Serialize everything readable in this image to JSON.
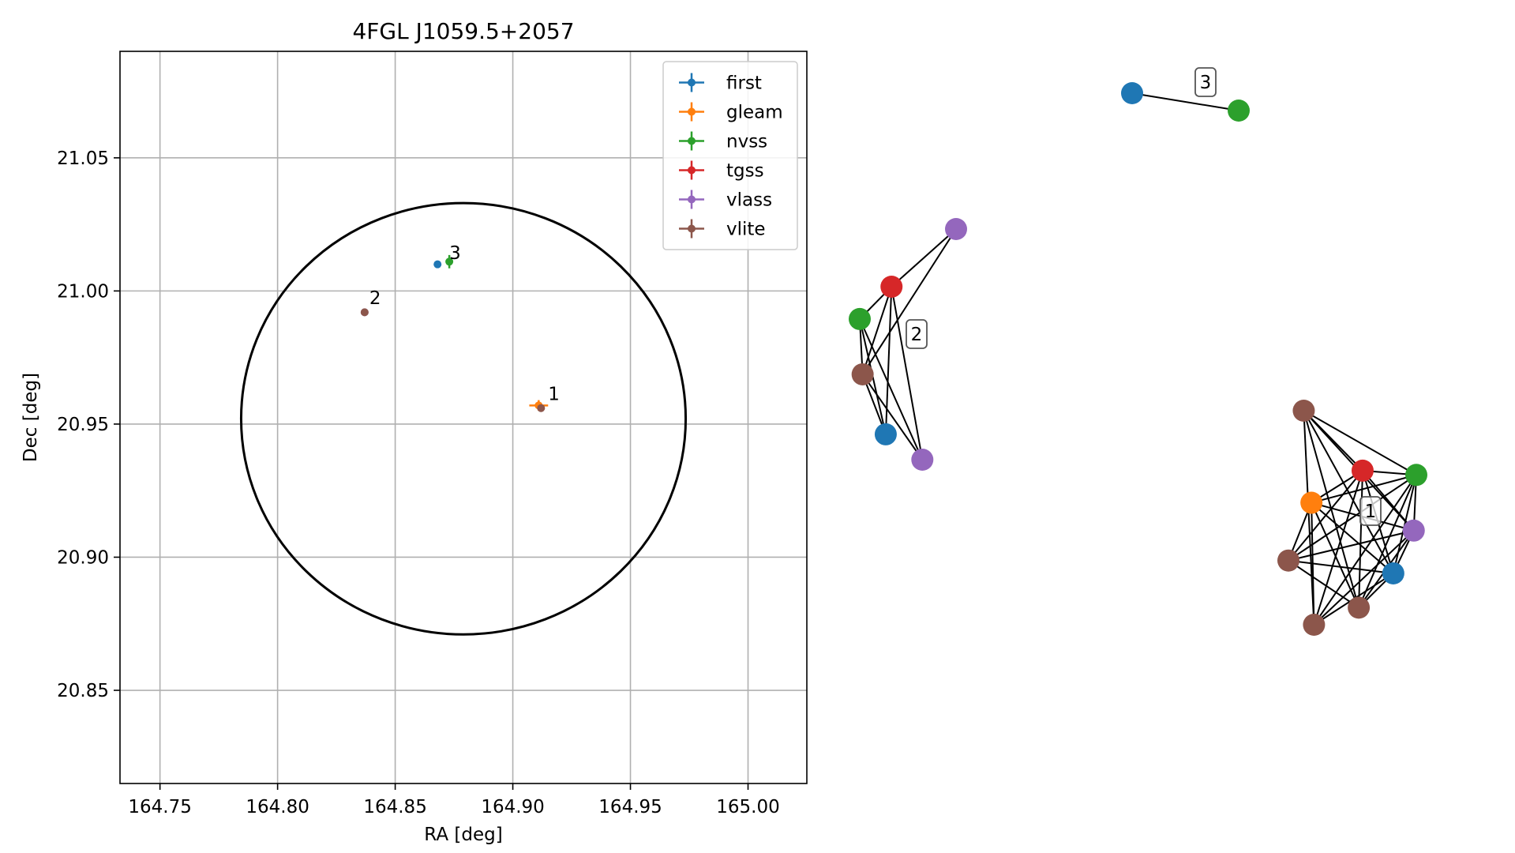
{
  "colors": {
    "first": "#1f77b4",
    "gleam": "#ff7f0e",
    "nvss": "#2ca02c",
    "tgss": "#d62728",
    "vlass": "#9467bd",
    "vlite": "#8c564b"
  },
  "chart_data": [
    {
      "type": "scatter",
      "title": "4FGL J1059.5+2057",
      "xlabel": "RA [deg]",
      "ylabel": "Dec [deg]",
      "xlim": [
        164.733,
        165.025
      ],
      "ylim": [
        20.815,
        21.09
      ],
      "grid": true,
      "legend_position": "top-right",
      "x_ticks": [
        {
          "value": 164.75,
          "label": "164.75"
        },
        {
          "value": 164.8,
          "label": "164.80"
        },
        {
          "value": 164.85,
          "label": "164.85"
        },
        {
          "value": 164.9,
          "label": "164.90"
        },
        {
          "value": 164.95,
          "label": "164.95"
        },
        {
          "value": 165.0,
          "label": "165.00"
        }
      ],
      "y_ticks": [
        {
          "value": 20.85,
          "label": "20.85"
        },
        {
          "value": 20.9,
          "label": "20.90"
        },
        {
          "value": 20.95,
          "label": "20.95"
        },
        {
          "value": 21.0,
          "label": "21.00"
        },
        {
          "value": 21.05,
          "label": "21.05"
        }
      ],
      "series": [
        {
          "name": "first",
          "color_key": "first",
          "points": [
            {
              "x": 164.868,
              "y": 21.01,
              "xerr": 0.0005,
              "yerr": 0.0005
            }
          ]
        },
        {
          "name": "gleam",
          "color_key": "gleam",
          "points": [
            {
              "x": 164.911,
              "y": 20.957,
              "xerr": 0.004,
              "yerr": 0.002
            }
          ]
        },
        {
          "name": "nvss",
          "color_key": "nvss",
          "points": [
            {
              "x": 164.873,
              "y": 21.011,
              "xerr": 0.0008,
              "yerr": 0.0025
            }
          ]
        },
        {
          "name": "tgss",
          "color_key": "tgss",
          "points": []
        },
        {
          "name": "vlass",
          "color_key": "vlass",
          "points": [
            {
              "x": 164.837,
              "y": 20.992,
              "xerr": 0.0003,
              "yerr": 0.0003
            }
          ]
        },
        {
          "name": "vlite",
          "color_key": "vlite",
          "points": [
            {
              "x": 164.837,
              "y": 20.992,
              "xerr": 0.0006,
              "yerr": 0.0006
            },
            {
              "x": 164.912,
              "y": 20.956,
              "xerr": 0.0006,
              "yerr": 0.0006
            }
          ]
        }
      ],
      "ellipse": {
        "center_x": 164.879,
        "center_y": 20.952,
        "radius_x": 0.0945,
        "radius_y": 0.081
      },
      "annotations": [
        {
          "text": "3",
          "x": 164.873,
          "y": 21.012
        },
        {
          "text": "2",
          "x": 164.839,
          "y": 20.995
        },
        {
          "text": "1",
          "x": 164.915,
          "y": 20.959
        }
      ]
    },
    {
      "type": "network",
      "clusters": [
        {
          "label": "3",
          "nodes": [
            {
              "id": "3a",
              "catalog": "first",
              "x": 0.0,
              "y": 1.0
            },
            {
              "id": "3b",
              "catalog": "nvss",
              "x": 1.0,
              "y": 0.0
            }
          ],
          "edges": [
            [
              "3a",
              "3b"
            ]
          ]
        },
        {
          "label": "2",
          "nodes": [
            {
              "id": "2a",
              "catalog": "vlass",
              "x": 1.0,
              "y": 1.0
            },
            {
              "id": "2b",
              "catalog": "tgss",
              "x": 0.33,
              "y": 0.75
            },
            {
              "id": "2c",
              "catalog": "nvss",
              "x": 0.0,
              "y": 0.61
            },
            {
              "id": "2d",
              "catalog": "vlite",
              "x": 0.03,
              "y": 0.37
            },
            {
              "id": "2e",
              "catalog": "first",
              "x": 0.27,
              "y": 0.11
            },
            {
              "id": "2f",
              "catalog": "vlass",
              "x": 0.65,
              "y": 0.0
            }
          ],
          "edges": [
            [
              "2a",
              "2b"
            ],
            [
              "2a",
              "2d"
            ],
            [
              "2b",
              "2c"
            ],
            [
              "2b",
              "2d"
            ],
            [
              "2b",
              "2e"
            ],
            [
              "2b",
              "2f"
            ],
            [
              "2c",
              "2d"
            ],
            [
              "2c",
              "2e"
            ],
            [
              "2c",
              "2f"
            ],
            [
              "2d",
              "2e"
            ],
            [
              "2d",
              "2f"
            ]
          ]
        },
        {
          "label": "1",
          "nodes": [
            {
              "id": "1a",
              "catalog": "vlite",
              "x": 0.12,
              "y": 1.0
            },
            {
              "id": "1b",
              "catalog": "tgss",
              "x": 0.58,
              "y": 0.72
            },
            {
              "id": "1c",
              "catalog": "nvss",
              "x": 1.0,
              "y": 0.7
            },
            {
              "id": "1d",
              "catalog": "gleam",
              "x": 0.18,
              "y": 0.57
            },
            {
              "id": "1e",
              "catalog": "vlass",
              "x": 0.98,
              "y": 0.44
            },
            {
              "id": "1f",
              "catalog": "vlite",
              "x": 0.0,
              "y": 0.3
            },
            {
              "id": "1g",
              "catalog": "first",
              "x": 0.82,
              "y": 0.24
            },
            {
              "id": "1h",
              "catalog": "vlite",
              "x": 0.55,
              "y": 0.08
            },
            {
              "id": "1i",
              "catalog": "vlite",
              "x": 0.2,
              "y": 0.0
            }
          ],
          "edges": [
            [
              "1a",
              "1b"
            ],
            [
              "1a",
              "1c"
            ],
            [
              "1a",
              "1e"
            ],
            [
              "1a",
              "1g"
            ],
            [
              "1a",
              "1h"
            ],
            [
              "1a",
              "1i"
            ],
            [
              "1b",
              "1c"
            ],
            [
              "1b",
              "1d"
            ],
            [
              "1b",
              "1e"
            ],
            [
              "1b",
              "1f"
            ],
            [
              "1b",
              "1g"
            ],
            [
              "1b",
              "1h"
            ],
            [
              "1b",
              "1i"
            ],
            [
              "1c",
              "1d"
            ],
            [
              "1c",
              "1e"
            ],
            [
              "1c",
              "1f"
            ],
            [
              "1c",
              "1g"
            ],
            [
              "1c",
              "1h"
            ],
            [
              "1c",
              "1i"
            ],
            [
              "1d",
              "1e"
            ],
            [
              "1d",
              "1f"
            ],
            [
              "1d",
              "1g"
            ],
            [
              "1d",
              "1h"
            ],
            [
              "1d",
              "1i"
            ],
            [
              "1e",
              "1f"
            ],
            [
              "1e",
              "1g"
            ],
            [
              "1e",
              "1h"
            ],
            [
              "1e",
              "1i"
            ],
            [
              "1f",
              "1g"
            ],
            [
              "1f",
              "1h"
            ],
            [
              "1g",
              "1h"
            ],
            [
              "1g",
              "1i"
            ]
          ]
        }
      ]
    }
  ]
}
